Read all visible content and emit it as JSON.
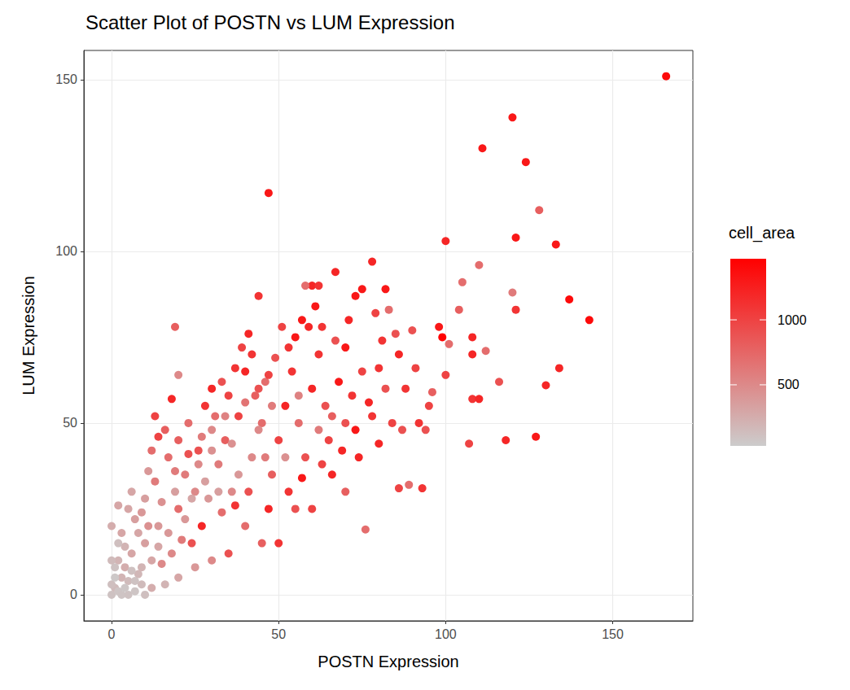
{
  "chart_data": {
    "type": "scatter",
    "title": "Scatter Plot of POSTN vs LUM Expression",
    "x_label": "POSTN Expression",
    "y_label": "LUM Expression",
    "xlim": [
      -8.3,
      174
    ],
    "ylim": [
      -7.6,
      158.5
    ],
    "xticks": [
      0,
      50,
      100,
      150
    ],
    "yticks": [
      0,
      50,
      100,
      150
    ],
    "grid": true,
    "marker": "circle",
    "colorbar": {
      "label": "cell_area",
      "range": [
        30,
        1470
      ],
      "ticks": [
        500,
        1000
      ],
      "colors": [
        "#cccccc",
        "#ff0000"
      ]
    },
    "points": [
      {
        "x": 166,
        "y": 151,
        "cell_area": 1400
      },
      {
        "x": 120,
        "y": 139,
        "cell_area": 1300
      },
      {
        "x": 111,
        "y": 130,
        "cell_area": 1300
      },
      {
        "x": 124,
        "y": 126,
        "cell_area": 1300
      },
      {
        "x": 128,
        "y": 112,
        "cell_area": 800
      },
      {
        "x": 47,
        "y": 117,
        "cell_area": 1300
      },
      {
        "x": 121,
        "y": 104,
        "cell_area": 1300
      },
      {
        "x": 100,
        "y": 103,
        "cell_area": 1200
      },
      {
        "x": 133,
        "y": 102,
        "cell_area": 1300
      },
      {
        "x": 110,
        "y": 96,
        "cell_area": 700
      },
      {
        "x": 137,
        "y": 86,
        "cell_area": 1400
      },
      {
        "x": 143,
        "y": 80,
        "cell_area": 1400
      },
      {
        "x": 78,
        "y": 97,
        "cell_area": 1200
      },
      {
        "x": 67,
        "y": 94,
        "cell_area": 1200
      },
      {
        "x": 44,
        "y": 87,
        "cell_area": 1100
      },
      {
        "x": 120,
        "y": 88,
        "cell_area": 600
      },
      {
        "x": 121,
        "y": 83,
        "cell_area": 1100
      },
      {
        "x": 99,
        "y": 75,
        "cell_area": 1500
      },
      {
        "x": 98,
        "y": 78,
        "cell_area": 1300
      },
      {
        "x": 104,
        "y": 83,
        "cell_area": 800
      },
      {
        "x": 105,
        "y": 91,
        "cell_area": 700
      },
      {
        "x": 116,
        "y": 62,
        "cell_area": 900
      },
      {
        "x": 130,
        "y": 61,
        "cell_area": 1200
      },
      {
        "x": 134,
        "y": 66,
        "cell_area": 1200
      },
      {
        "x": 127,
        "y": 46,
        "cell_area": 1300
      },
      {
        "x": 118,
        "y": 45,
        "cell_area": 1200
      },
      {
        "x": 107,
        "y": 44,
        "cell_area": 1000
      },
      {
        "x": 108,
        "y": 57,
        "cell_area": 1100
      },
      {
        "x": 110,
        "y": 57,
        "cell_area": 1200
      },
      {
        "x": 19,
        "y": 78,
        "cell_area": 800
      },
      {
        "x": 20,
        "y": 64,
        "cell_area": 500
      },
      {
        "x": 76,
        "y": 19,
        "cell_area": 700
      },
      {
        "x": 93,
        "y": 31,
        "cell_area": 1100
      },
      {
        "x": 89,
        "y": 32,
        "cell_area": 700
      },
      {
        "x": 86,
        "y": 31,
        "cell_area": 1000
      },
      {
        "x": 108,
        "y": 70,
        "cell_area": 1200
      },
      {
        "x": 108,
        "y": 75,
        "cell_area": 1200
      },
      {
        "x": 112,
        "y": 71,
        "cell_area": 700
      },
      {
        "x": 95,
        "y": 55,
        "cell_area": 1000
      },
      {
        "x": 94,
        "y": 48,
        "cell_area": 900
      },
      {
        "x": 100,
        "y": 64,
        "cell_area": 1000
      },
      {
        "x": 96,
        "y": 59,
        "cell_area": 800
      },
      {
        "x": 90,
        "y": 77,
        "cell_area": 900
      },
      {
        "x": 92,
        "y": 50,
        "cell_area": 1100
      },
      {
        "x": 101,
        "y": 73,
        "cell_area": 700
      },
      {
        "x": 86,
        "y": 70,
        "cell_area": 1200
      },
      {
        "x": 82,
        "y": 89,
        "cell_area": 1300
      },
      {
        "x": 83,
        "y": 83,
        "cell_area": 700
      },
      {
        "x": 75,
        "y": 89,
        "cell_area": 1300
      },
      {
        "x": 60,
        "y": 90,
        "cell_area": 1200
      },
      {
        "x": 58,
        "y": 90,
        "cell_area": 700
      },
      {
        "x": 62,
        "y": 90,
        "cell_area": 1100
      },
      {
        "x": 73,
        "y": 87,
        "cell_area": 1300
      },
      {
        "x": 79,
        "y": 82,
        "cell_area": 1000
      },
      {
        "x": 85,
        "y": 76,
        "cell_area": 900
      },
      {
        "x": 80,
        "y": 66,
        "cell_area": 1100
      },
      {
        "x": 70,
        "y": 72,
        "cell_area": 1300
      },
      {
        "x": 0,
        "y": 0,
        "cell_area": 100
      },
      {
        "x": 1,
        "y": 2,
        "cell_area": 150
      },
      {
        "x": 2,
        "y": 1,
        "cell_area": 80
      },
      {
        "x": 3,
        "y": 5,
        "cell_area": 200
      },
      {
        "x": 0,
        "y": 3,
        "cell_area": 120
      },
      {
        "x": 5,
        "y": 4,
        "cell_area": 150
      },
      {
        "x": 4,
        "y": 8,
        "cell_area": 250
      },
      {
        "x": 2,
        "y": 10,
        "cell_area": 200
      },
      {
        "x": 6,
        "y": 12,
        "cell_area": 300
      },
      {
        "x": 8,
        "y": 6,
        "cell_area": 180
      },
      {
        "x": 10,
        "y": 15,
        "cell_area": 350
      },
      {
        "x": 12,
        "y": 10,
        "cell_area": 300
      },
      {
        "x": 0,
        "y": 20,
        "cell_area": 250
      },
      {
        "x": 3,
        "y": 18,
        "cell_area": 300
      },
      {
        "x": 7,
        "y": 22,
        "cell_area": 350
      },
      {
        "x": 9,
        "y": 3,
        "cell_area": 150
      },
      {
        "x": 14,
        "y": 20,
        "cell_area": 400
      },
      {
        "x": 15,
        "y": 27,
        "cell_area": 450
      },
      {
        "x": 13,
        "y": 33,
        "cell_area": 600
      },
      {
        "x": 11,
        "y": 36,
        "cell_area": 400
      },
      {
        "x": 5,
        "y": 25,
        "cell_area": 300
      },
      {
        "x": 18,
        "y": 12,
        "cell_area": 500
      },
      {
        "x": 20,
        "y": 25,
        "cell_area": 700
      },
      {
        "x": 22,
        "y": 35,
        "cell_area": 600
      },
      {
        "x": 25,
        "y": 30,
        "cell_area": 500
      },
      {
        "x": 17,
        "y": 40,
        "cell_area": 700
      },
      {
        "x": 16,
        "y": 48,
        "cell_area": 800
      },
      {
        "x": 13,
        "y": 52,
        "cell_area": 1000
      },
      {
        "x": 18,
        "y": 57,
        "cell_area": 1200
      },
      {
        "x": 20,
        "y": 45,
        "cell_area": 800
      },
      {
        "x": 23,
        "y": 50,
        "cell_area": 700
      },
      {
        "x": 26,
        "y": 42,
        "cell_area": 900
      },
      {
        "x": 28,
        "y": 55,
        "cell_area": 1100
      },
      {
        "x": 30,
        "y": 60,
        "cell_area": 1200
      },
      {
        "x": 33,
        "y": 62,
        "cell_area": 900
      },
      {
        "x": 35,
        "y": 58,
        "cell_area": 1000
      },
      {
        "x": 27,
        "y": 20,
        "cell_area": 1200
      },
      {
        "x": 24,
        "y": 15,
        "cell_area": 900
      },
      {
        "x": 29,
        "y": 28,
        "cell_area": 400
      },
      {
        "x": 32,
        "y": 38,
        "cell_area": 600
      },
      {
        "x": 34,
        "y": 45,
        "cell_area": 800
      },
      {
        "x": 36,
        "y": 30,
        "cell_area": 500
      },
      {
        "x": 38,
        "y": 52,
        "cell_area": 1000
      },
      {
        "x": 40,
        "y": 65,
        "cell_area": 1200
      },
      {
        "x": 42,
        "y": 70,
        "cell_area": 1100
      },
      {
        "x": 44,
        "y": 60,
        "cell_area": 900
      },
      {
        "x": 45,
        "y": 50,
        "cell_area": 700
      },
      {
        "x": 46,
        "y": 40,
        "cell_area": 600
      },
      {
        "x": 48,
        "y": 35,
        "cell_area": 800
      },
      {
        "x": 50,
        "y": 45,
        "cell_area": 1000
      },
      {
        "x": 52,
        "y": 55,
        "cell_area": 1200
      },
      {
        "x": 54,
        "y": 65,
        "cell_area": 1100
      },
      {
        "x": 55,
        "y": 75,
        "cell_area": 1300
      },
      {
        "x": 56,
        "y": 50,
        "cell_area": 700
      },
      {
        "x": 58,
        "y": 40,
        "cell_area": 900
      },
      {
        "x": 60,
        "y": 60,
        "cell_area": 1200
      },
      {
        "x": 62,
        "y": 70,
        "cell_area": 1100
      },
      {
        "x": 64,
        "y": 55,
        "cell_area": 900
      },
      {
        "x": 65,
        "y": 45,
        "cell_area": 1000
      },
      {
        "x": 66,
        "y": 35,
        "cell_area": 1200
      },
      {
        "x": 68,
        "y": 62,
        "cell_area": 1300
      },
      {
        "x": 70,
        "y": 50,
        "cell_area": 900
      },
      {
        "x": 72,
        "y": 58,
        "cell_area": 1100
      },
      {
        "x": 74,
        "y": 40,
        "cell_area": 1200
      },
      {
        "x": 75,
        "y": 65,
        "cell_area": 1000
      },
      {
        "x": 78,
        "y": 52,
        "cell_area": 1100
      },
      {
        "x": 80,
        "y": 44,
        "cell_area": 1200
      },
      {
        "x": 82,
        "y": 60,
        "cell_area": 900
      },
      {
        "x": 70,
        "y": 30,
        "cell_area": 800
      },
      {
        "x": 60,
        "y": 25,
        "cell_area": 1000
      },
      {
        "x": 55,
        "y": 25,
        "cell_area": 900
      },
      {
        "x": 50,
        "y": 15,
        "cell_area": 1100
      },
      {
        "x": 45,
        "y": 15,
        "cell_area": 800
      },
      {
        "x": 40,
        "y": 20,
        "cell_area": 700
      },
      {
        "x": 35,
        "y": 12,
        "cell_area": 900
      },
      {
        "x": 30,
        "y": 10,
        "cell_area": 500
      },
      {
        "x": 25,
        "y": 8,
        "cell_area": 400
      },
      {
        "x": 20,
        "y": 5,
        "cell_area": 300
      },
      {
        "x": 16,
        "y": 3,
        "cell_area": 200
      },
      {
        "x": 12,
        "y": 2,
        "cell_area": 250
      },
      {
        "x": 42,
        "y": 40,
        "cell_area": 500
      },
      {
        "x": 38,
        "y": 35,
        "cell_area": 400
      },
      {
        "x": 30,
        "y": 42,
        "cell_area": 450
      },
      {
        "x": 28,
        "y": 33,
        "cell_area": 350
      },
      {
        "x": 24,
        "y": 28,
        "cell_area": 300
      },
      {
        "x": 22,
        "y": 22,
        "cell_area": 400
      },
      {
        "x": 19,
        "y": 30,
        "cell_area": 350
      },
      {
        "x": 17,
        "y": 18,
        "cell_area": 400
      },
      {
        "x": 8,
        "y": 18,
        "cell_area": 300
      },
      {
        "x": 10,
        "y": 28,
        "cell_area": 350
      },
      {
        "x": 6,
        "y": 30,
        "cell_area": 300
      },
      {
        "x": 4,
        "y": 14,
        "cell_area": 200
      },
      {
        "x": 1,
        "y": 8,
        "cell_area": 100
      },
      {
        "x": 2,
        "y": 15,
        "cell_area": 120
      },
      {
        "x": 9,
        "y": 8,
        "cell_area": 200
      },
      {
        "x": 11,
        "y": 20,
        "cell_area": 450
      },
      {
        "x": 14,
        "y": 14,
        "cell_area": 300
      },
      {
        "x": 26,
        "y": 38,
        "cell_area": 500
      },
      {
        "x": 32,
        "y": 30,
        "cell_area": 350
      },
      {
        "x": 36,
        "y": 44,
        "cell_area": 450
      },
      {
        "x": 44,
        "y": 48,
        "cell_area": 500
      },
      {
        "x": 48,
        "y": 55,
        "cell_area": 600
      },
      {
        "x": 52,
        "y": 40,
        "cell_area": 450
      },
      {
        "x": 56,
        "y": 58,
        "cell_area": 550
      },
      {
        "x": 62,
        "y": 48,
        "cell_area": 600
      },
      {
        "x": 66,
        "y": 52,
        "cell_area": 800
      },
      {
        "x": 46,
        "y": 62,
        "cell_area": 700
      },
      {
        "x": 40,
        "y": 56,
        "cell_area": 650
      },
      {
        "x": 34,
        "y": 52,
        "cell_area": 550
      },
      {
        "x": 30,
        "y": 48,
        "cell_area": 500
      },
      {
        "x": 21,
        "y": 16,
        "cell_area": 600
      },
      {
        "x": 15,
        "y": 9,
        "cell_area": 500
      },
      {
        "x": 9,
        "y": 24,
        "cell_area": 400
      },
      {
        "x": 7,
        "y": 4,
        "cell_area": 100
      },
      {
        "x": 3,
        "y": 0,
        "cell_area": 90
      },
      {
        "x": 0,
        "y": 10,
        "cell_area": 150
      },
      {
        "x": 1,
        "y": 5,
        "cell_area": 60
      },
      {
        "x": 2,
        "y": 26,
        "cell_area": 300
      },
      {
        "x": 12,
        "y": 42,
        "cell_area": 700
      },
      {
        "x": 14,
        "y": 46,
        "cell_area": 1000
      },
      {
        "x": 19,
        "y": 36,
        "cell_area": 600
      },
      {
        "x": 23,
        "y": 41,
        "cell_area": 900
      },
      {
        "x": 37,
        "y": 66,
        "cell_area": 1100
      },
      {
        "x": 39,
        "y": 72,
        "cell_area": 1000
      },
      {
        "x": 41,
        "y": 76,
        "cell_area": 1200
      },
      {
        "x": 47,
        "y": 64,
        "cell_area": 1000
      },
      {
        "x": 49,
        "y": 69,
        "cell_area": 900
      },
      {
        "x": 53,
        "y": 72,
        "cell_area": 1100
      },
      {
        "x": 57,
        "y": 80,
        "cell_area": 1300
      },
      {
        "x": 59,
        "y": 78,
        "cell_area": 1200
      },
      {
        "x": 63,
        "y": 78,
        "cell_area": 1100
      },
      {
        "x": 67,
        "y": 74,
        "cell_area": 900
      },
      {
        "x": 71,
        "y": 80,
        "cell_area": 1200
      },
      {
        "x": 61,
        "y": 84,
        "cell_area": 1300
      },
      {
        "x": 51,
        "y": 78,
        "cell_area": 1000
      },
      {
        "x": 43,
        "y": 58,
        "cell_area": 800
      },
      {
        "x": 31,
        "y": 52,
        "cell_area": 700
      },
      {
        "x": 27,
        "y": 46,
        "cell_area": 600
      },
      {
        "x": 33,
        "y": 24,
        "cell_area": 700
      },
      {
        "x": 37,
        "y": 26,
        "cell_area": 1100
      },
      {
        "x": 41,
        "y": 30,
        "cell_area": 900
      },
      {
        "x": 47,
        "y": 25,
        "cell_area": 1200
      },
      {
        "x": 53,
        "y": 30,
        "cell_area": 1100
      },
      {
        "x": 57,
        "y": 34,
        "cell_area": 1300
      },
      {
        "x": 63,
        "y": 38,
        "cell_area": 1000
      },
      {
        "x": 69,
        "y": 42,
        "cell_area": 1200
      },
      {
        "x": 73,
        "y": 48,
        "cell_area": 1300
      },
      {
        "x": 77,
        "y": 56,
        "cell_area": 1200
      },
      {
        "x": 81,
        "y": 74,
        "cell_area": 1100
      },
      {
        "x": 84,
        "y": 50,
        "cell_area": 1000
      },
      {
        "x": 88,
        "y": 60,
        "cell_area": 1100
      },
      {
        "x": 91,
        "y": 66,
        "cell_area": 1000
      },
      {
        "x": 87,
        "y": 48,
        "cell_area": 900
      },
      {
        "x": 5,
        "y": 0,
        "cell_area": 100
      },
      {
        "x": 7,
        "y": 1,
        "cell_area": 80
      },
      {
        "x": 10,
        "y": 0,
        "cell_area": 120
      },
      {
        "x": 4,
        "y": 2,
        "cell_area": 70
      },
      {
        "x": 6,
        "y": 7,
        "cell_area": 110
      }
    ]
  }
}
